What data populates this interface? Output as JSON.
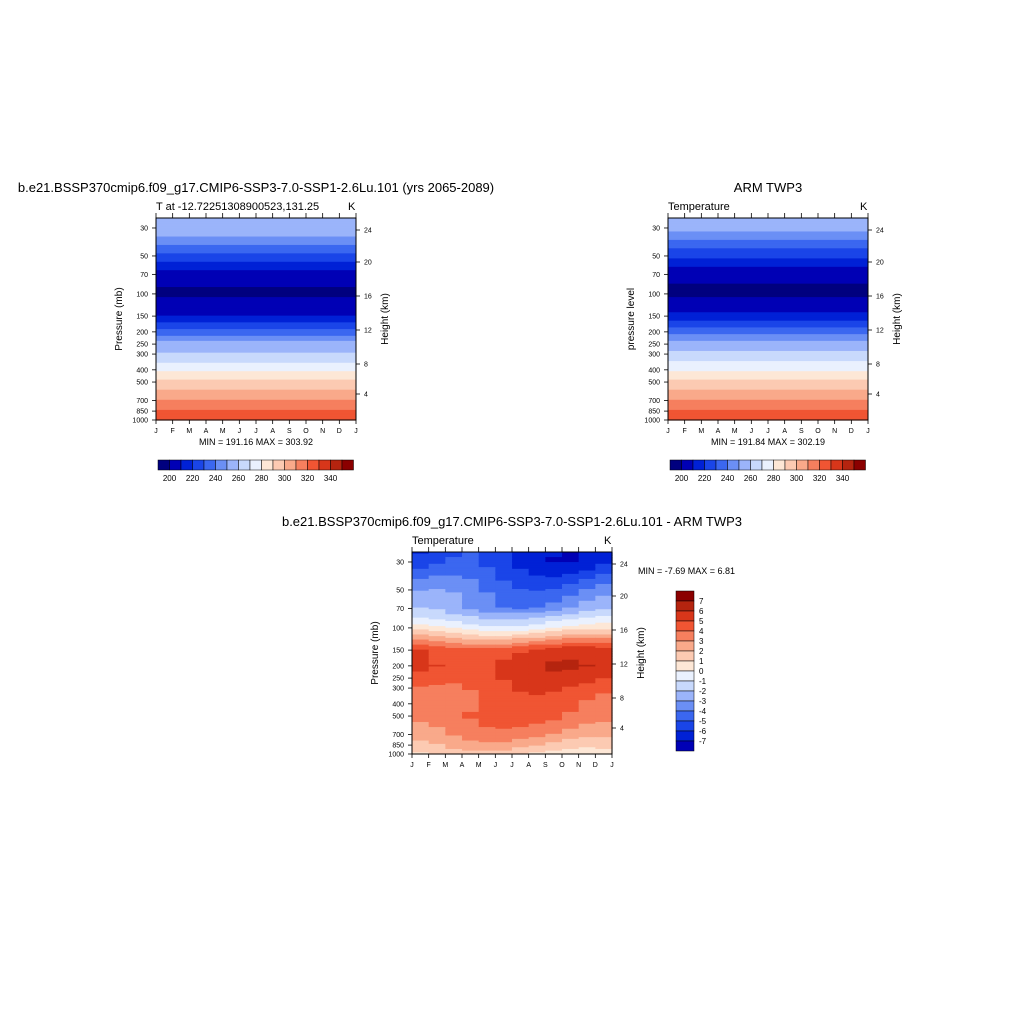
{
  "palette": [
    "#00007f",
    "#0000b5",
    "#0021d6",
    "#1a45e8",
    "#3b67f0",
    "#6b8ff5",
    "#9bb4fa",
    "#c8d9fc",
    "#eaf1fe",
    "#fde7d6",
    "#fccab2",
    "#f9a98a",
    "#f67f5e",
    "#f05533",
    "#d8361a",
    "#b5240f",
    "#8b0000"
  ],
  "months": [
    "J",
    "F",
    "M",
    "A",
    "M",
    "J",
    "J",
    "A",
    "S",
    "O",
    "N",
    "D",
    "J"
  ],
  "pressure_ticks": [
    "30",
    "50",
    "70",
    "100",
    "150",
    "200",
    "250",
    "300",
    "400",
    "500",
    "700",
    "850",
    "1000"
  ],
  "height_ticks": [
    "24",
    "20",
    "16",
    "12",
    "8",
    "4"
  ],
  "panels": [
    {
      "title": "b.e21.BSSP370cmip6.f09_g17.CMIP6-SSP3-7.0-SSP1-2.6Lu.101 (yrs 2065-2089)",
      "subtitle_left": "T at -12.72251308900523,131.25",
      "subtitle_right": "K",
      "ylabel": "Pressure (mb)",
      "ylabel_right": "Height (km)",
      "minmax": "MIN = 191.16 MAX = 303.92",
      "colorbar_labels": [
        "200",
        "220",
        "240",
        "260",
        "280",
        "300",
        "320",
        "340"
      ]
    },
    {
      "title": "ARM TWP3",
      "subtitle_left": "Temperature",
      "subtitle_right": "K",
      "ylabel": "pressure level",
      "ylabel_right": "Height (km)",
      "minmax": "MIN = 191.84 MAX = 302.19",
      "colorbar_labels": [
        "200",
        "220",
        "240",
        "260",
        "280",
        "300",
        "320",
        "340"
      ]
    },
    {
      "title": "b.e21.BSSP370cmip6.f09_g17.CMIP6-SSP3-7.0-SSP1-2.6Lu.101 - ARM TWP3",
      "subtitle_left": "Temperature",
      "subtitle_right": "K",
      "ylabel": "Pressure (mb)",
      "ylabel_right": "Height (km)",
      "minmax": "MIN =  -7.69 MAX =   6.81",
      "colorbar_labels": [
        "7",
        "6",
        "5",
        "4",
        "3",
        "2",
        "1",
        "0",
        "-1",
        "-2",
        "-3",
        "-4",
        "-5",
        "-6",
        "-7"
      ]
    }
  ],
  "chart_data": [
    {
      "type": "heatmap",
      "title": "b.e21.BSSP370cmip6.f09_g17.CMIP6-SSP3-7.0-SSP1-2.6Lu.101 (yrs 2065-2089)",
      "subtitle": "T at -12.72251308900523,131.25",
      "units": "K",
      "xlabel": "",
      "ylabel": "Pressure (mb)",
      "ylabel_right": "Height (km)",
      "x": [
        "J",
        "F",
        "M",
        "A",
        "M",
        "J",
        "J",
        "A",
        "S",
        "O",
        "N",
        "D",
        "J"
      ],
      "y_pressure_mb": [
        30,
        50,
        70,
        100,
        150,
        200,
        250,
        300,
        400,
        500,
        700,
        850,
        1000
      ],
      "y_log_scale": true,
      "ylim": [
        1000,
        25
      ],
      "values_by_level_K": [
        225,
        208,
        197,
        194,
        200,
        212,
        222,
        232,
        248,
        262,
        280,
        292,
        300
      ],
      "min": 191.16,
      "max": 303.92,
      "colorbar_levels": [
        195,
        200,
        205,
        210,
        215,
        220,
        230,
        240,
        250,
        260,
        270,
        280,
        290,
        300,
        310,
        320,
        330,
        340,
        345
      ],
      "colorbar_ticks": [
        200,
        220,
        240,
        260,
        280,
        300,
        320,
        340
      ]
    },
    {
      "type": "heatmap",
      "title": "ARM TWP3",
      "subtitle": "Temperature",
      "units": "K",
      "ylabel": "pressure level",
      "ylabel_right": "Height (km)",
      "x": [
        "J",
        "F",
        "M",
        "A",
        "M",
        "J",
        "J",
        "A",
        "S",
        "O",
        "N",
        "D",
        "J"
      ],
      "y_pressure_mb": [
        30,
        50,
        70,
        100,
        150,
        200,
        250,
        300,
        400,
        500,
        700,
        850,
        1000
      ],
      "y_log_scale": true,
      "values_by_level_K": [
        222,
        206,
        196,
        194,
        201,
        213,
        223,
        233,
        249,
        263,
        280,
        291,
        299
      ],
      "min": 191.84,
      "max": 302.19,
      "colorbar_ticks": [
        200,
        220,
        240,
        260,
        280,
        300,
        320,
        340
      ]
    },
    {
      "type": "heatmap",
      "title": "b.e21.BSSP370cmip6.f09_g17.CMIP6-SSP3-7.0-SSP1-2.6Lu.101 - ARM TWP3",
      "subtitle": "Temperature",
      "units": "K",
      "ylabel": "Pressure (mb)",
      "ylabel_right": "Height (km)",
      "x": [
        "J",
        "F",
        "M",
        "A",
        "M",
        "J",
        "J",
        "A",
        "S",
        "O",
        "N",
        "D",
        "J"
      ],
      "y_pressure_mb": [
        30,
        50,
        70,
        100,
        150,
        200,
        250,
        300,
        400,
        500,
        700,
        850,
        1000
      ],
      "y_log_scale": true,
      "values_by_level_diff_K": [
        -6,
        -4,
        -3,
        0,
        5,
        5.5,
        5,
        4.5,
        4,
        4,
        3,
        2,
        1
      ],
      "min": -7.69,
      "max": 6.81,
      "colorbar_ticks": [
        7,
        6,
        5,
        4,
        3,
        2,
        1,
        0,
        -1,
        -2,
        -3,
        -4,
        -5,
        -6,
        -7
      ]
    }
  ]
}
